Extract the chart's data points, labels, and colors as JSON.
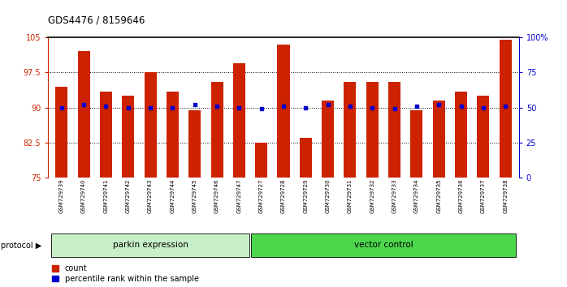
{
  "title": "GDS4476 / 8159646",
  "samples": [
    "GSM729739",
    "GSM729740",
    "GSM729741",
    "GSM729742",
    "GSM729743",
    "GSM729744",
    "GSM729745",
    "GSM729746",
    "GSM729747",
    "GSM729727",
    "GSM729728",
    "GSM729729",
    "GSM729730",
    "GSM729731",
    "GSM729732",
    "GSM729733",
    "GSM729734",
    "GSM729735",
    "GSM729736",
    "GSM729737",
    "GSM729738"
  ],
  "counts": [
    94.5,
    102.0,
    93.5,
    92.5,
    97.5,
    93.5,
    89.5,
    95.5,
    99.5,
    82.5,
    103.5,
    83.5,
    91.5,
    95.5,
    95.5,
    95.5,
    89.5,
    91.5,
    93.5,
    92.5,
    104.5
  ],
  "percentile_ranks": [
    50,
    52,
    51,
    50,
    50,
    50,
    52,
    51,
    50,
    49,
    51,
    50,
    52,
    51,
    50,
    49,
    51,
    52,
    51,
    50,
    51
  ],
  "group_labels": [
    "parkin expression",
    "vector control"
  ],
  "bar_color": "#CC2200",
  "dot_color": "#0000CC",
  "ylim_left": [
    75,
    105
  ],
  "ylim_right": [
    0,
    100
  ],
  "yticks_left": [
    75,
    82.5,
    90,
    97.5,
    105
  ],
  "yticks_right": [
    0,
    25,
    50,
    75,
    100
  ],
  "ytick_labels_right": [
    "0",
    "25",
    "50",
    "75",
    "100%"
  ],
  "legend_count_label": "count",
  "legend_pct_label": "percentile rank within the sample",
  "protocol_label": "protocol"
}
